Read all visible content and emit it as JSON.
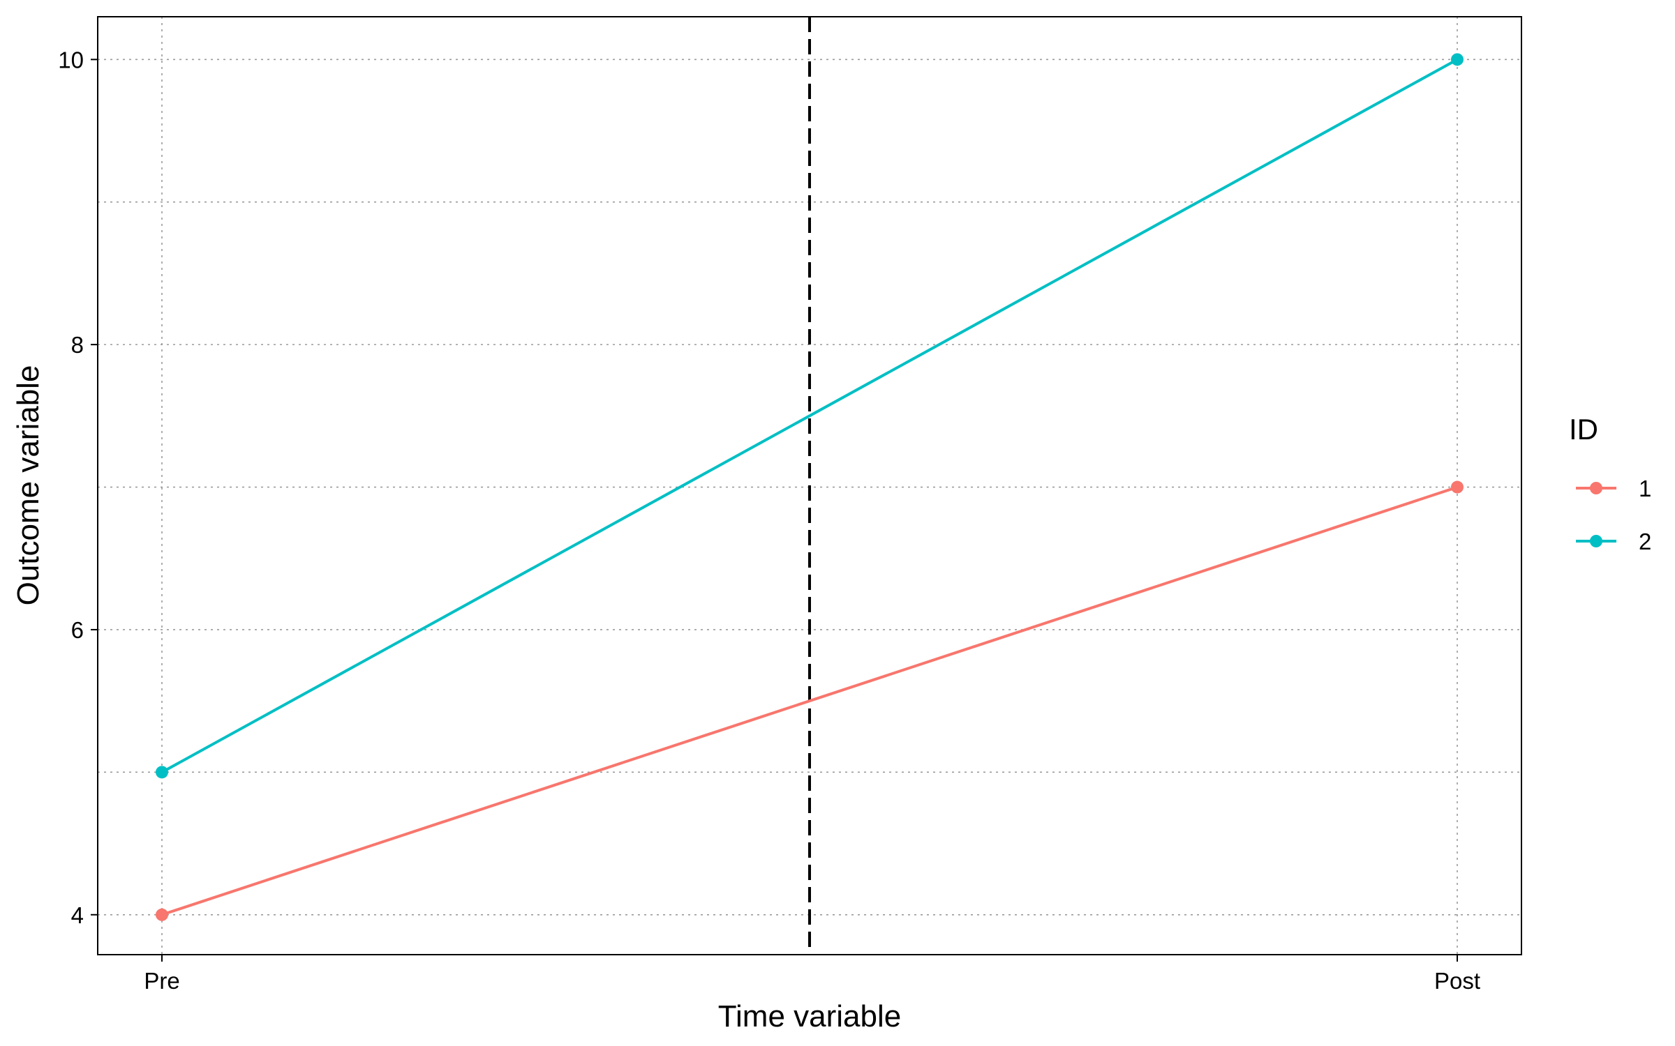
{
  "chart_data": {
    "type": "line",
    "xlabel": "Time variable",
    "ylabel": "Outcome variable",
    "categories": [
      "Pre",
      "Post"
    ],
    "ylim": [
      3.72,
      10.3
    ],
    "yticks": [
      4,
      6,
      8,
      10
    ],
    "yticks_labels": [
      "4",
      "6",
      "8",
      "10"
    ],
    "grid": true,
    "reference_line": {
      "orientation": "vertical",
      "at_x": 0.5,
      "style": "dashed",
      "color": "#000000"
    },
    "legend": {
      "title": "ID",
      "placement": "right"
    },
    "series": [
      {
        "name": "1",
        "values": [
          4,
          7
        ],
        "color": "#F8766D"
      },
      {
        "name": "2",
        "values": [
          5,
          10
        ],
        "color": "#00BFC4"
      }
    ]
  }
}
